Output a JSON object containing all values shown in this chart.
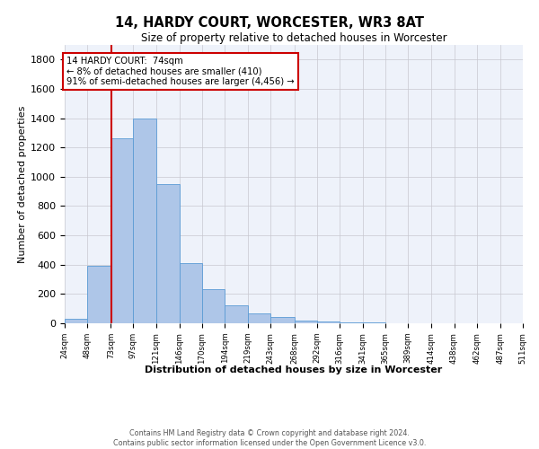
{
  "title": "14, HARDY COURT, WORCESTER, WR3 8AT",
  "subtitle": "Size of property relative to detached houses in Worcester",
  "xlabel": "Distribution of detached houses by size in Worcester",
  "ylabel": "Number of detached properties",
  "bar_color": "#aec6e8",
  "bar_edge_color": "#5b9bd5",
  "background_color": "#ffffff",
  "plot_bg_color": "#eef2fa",
  "grid_color": "#c8c8d0",
  "annotation_box_color": "#cc0000",
  "property_line_color": "#cc0000",
  "property_value": 74,
  "annotation_text_line1": "14 HARDY COURT:  74sqm",
  "annotation_text_line2": "← 8% of detached houses are smaller (410)",
  "annotation_text_line3": "91% of semi-detached houses are larger (4,456) →",
  "footer_line1": "Contains HM Land Registry data © Crown copyright and database right 2024.",
  "footer_line2": "Contains public sector information licensed under the Open Government Licence v3.0.",
  "bin_labels": [
    "24sqm",
    "48sqm",
    "73sqm",
    "97sqm",
    "121sqm",
    "146sqm",
    "170sqm",
    "194sqm",
    "219sqm",
    "243sqm",
    "268sqm",
    "292sqm",
    "316sqm",
    "341sqm",
    "365sqm",
    "389sqm",
    "414sqm",
    "438sqm",
    "462sqm",
    "487sqm",
    "511sqm"
  ],
  "bin_edges": [
    24,
    48,
    73,
    97,
    121,
    146,
    170,
    194,
    219,
    243,
    268,
    292,
    316,
    341,
    365,
    389,
    414,
    438,
    462,
    487,
    511
  ],
  "bar_heights": [
    28,
    390,
    1265,
    1395,
    950,
    410,
    233,
    120,
    65,
    40,
    18,
    15,
    5,
    5,
    0,
    0,
    0,
    0,
    0,
    0,
    0
  ],
  "ylim": [
    0,
    1900
  ],
  "yticks": [
    0,
    200,
    400,
    600,
    800,
    1000,
    1200,
    1400,
    1600,
    1800
  ]
}
